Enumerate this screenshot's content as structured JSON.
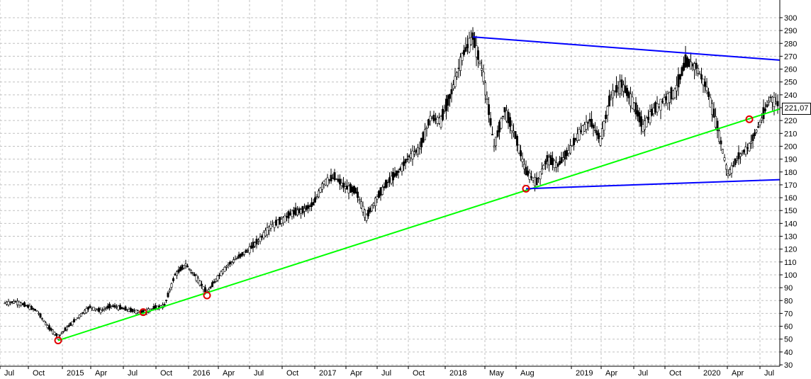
{
  "chart_data": {
    "type": "candlestick",
    "title": "",
    "xlabel": "",
    "ylabel": "",
    "ylim": [
      20,
      305
    ],
    "grid": true,
    "last_price_label": "221,07",
    "y_ticks": [
      30,
      40,
      50,
      60,
      70,
      80,
      90,
      100,
      110,
      120,
      130,
      140,
      150,
      160,
      170,
      180,
      190,
      200,
      210,
      220,
      230,
      240,
      250,
      260,
      270,
      280,
      290,
      300
    ],
    "x_ticks": [
      "Jul",
      "Oct",
      "2015",
      "Apr",
      "Jul",
      "Oct",
      "2016",
      "Apr",
      "Jul",
      "Oct",
      "2017",
      "Apr",
      "Jul",
      "Oct",
      "2018",
      "May",
      "Aug",
      "2019",
      "Apr",
      "Jul",
      "Oct",
      "2020",
      "Apr",
      "Jul"
    ],
    "price_series": [
      [
        "2014-07",
        78
      ],
      [
        "2014-08",
        79
      ],
      [
        "2014-09",
        76
      ],
      [
        "2014-10",
        72
      ],
      [
        "2014-11",
        60
      ],
      [
        "2014-12",
        52
      ],
      [
        "2015-01",
        60
      ],
      [
        "2015-02",
        68
      ],
      [
        "2015-03",
        75
      ],
      [
        "2015-04",
        72
      ],
      [
        "2015-05",
        76
      ],
      [
        "2015-06",
        74
      ],
      [
        "2015-07",
        72
      ],
      [
        "2015-08",
        71
      ],
      [
        "2015-09",
        74
      ],
      [
        "2015-10",
        76
      ],
      [
        "2015-11",
        100
      ],
      [
        "2015-12",
        108
      ],
      [
        "2016-01",
        98
      ],
      [
        "2016-02",
        86
      ],
      [
        "2016-03",
        98
      ],
      [
        "2016-04",
        108
      ],
      [
        "2016-05",
        114
      ],
      [
        "2016-06",
        120
      ],
      [
        "2016-07",
        128
      ],
      [
        "2016-08",
        138
      ],
      [
        "2016-09",
        142
      ],
      [
        "2016-10",
        148
      ],
      [
        "2016-11",
        150
      ],
      [
        "2016-12",
        155
      ],
      [
        "2017-01",
        172
      ],
      [
        "2017-02",
        176
      ],
      [
        "2017-03",
        168
      ],
      [
        "2017-04",
        165
      ],
      [
        "2017-05",
        145
      ],
      [
        "2017-06",
        160
      ],
      [
        "2017-07",
        172
      ],
      [
        "2017-08",
        180
      ],
      [
        "2017-09",
        192
      ],
      [
        "2017-10",
        198
      ],
      [
        "2017-11",
        222
      ],
      [
        "2017-12",
        220
      ],
      [
        "2018-01",
        242
      ],
      [
        "2018-02",
        270
      ],
      [
        "2018-03",
        285
      ],
      [
        "2018-04",
        255
      ],
      [
        "2018-05",
        200
      ],
      [
        "2018-06",
        228
      ],
      [
        "2018-07",
        208
      ],
      [
        "2018-08",
        180
      ],
      [
        "2018-09",
        172
      ],
      [
        "2018-10",
        190
      ],
      [
        "2018-11",
        185
      ],
      [
        "2018-12",
        196
      ],
      [
        "2019-01",
        210
      ],
      [
        "2019-02",
        220
      ],
      [
        "2019-03",
        205
      ],
      [
        "2019-04",
        240
      ],
      [
        "2019-05",
        248
      ],
      [
        "2019-06",
        235
      ],
      [
        "2019-07",
        215
      ],
      [
        "2019-08",
        228
      ],
      [
        "2019-09",
        236
      ],
      [
        "2019-10",
        242
      ],
      [
        "2019-11",
        265
      ],
      [
        "2019-12",
        262
      ],
      [
        "2020-01",
        245
      ],
      [
        "2020-02",
        215
      ],
      [
        "2020-03",
        178
      ],
      [
        "2020-04",
        192
      ],
      [
        "2020-05",
        200
      ],
      [
        "2020-06",
        218
      ],
      [
        "2020-07",
        238
      ],
      [
        "2020-08",
        230
      ],
      [
        "2020-09",
        221
      ]
    ],
    "trendlines": [
      {
        "color": "#00ff00",
        "points": [
          [
            "2014-12",
            49
          ],
          [
            "2020-09",
            229
          ]
        ]
      },
      {
        "color": "#0000ff",
        "points": [
          [
            "2018-03",
            285
          ],
          [
            "2020-09",
            267
          ]
        ]
      },
      {
        "color": "#0000ff",
        "points": [
          [
            "2018-08",
            167
          ],
          [
            "2020-09",
            174
          ]
        ]
      }
    ],
    "touch_points": [
      [
        "2014-12",
        49
      ],
      [
        "2015-08",
        71
      ],
      [
        "2016-02",
        84
      ],
      [
        "2018-08",
        167
      ],
      [
        "2020-05",
        221
      ]
    ]
  }
}
